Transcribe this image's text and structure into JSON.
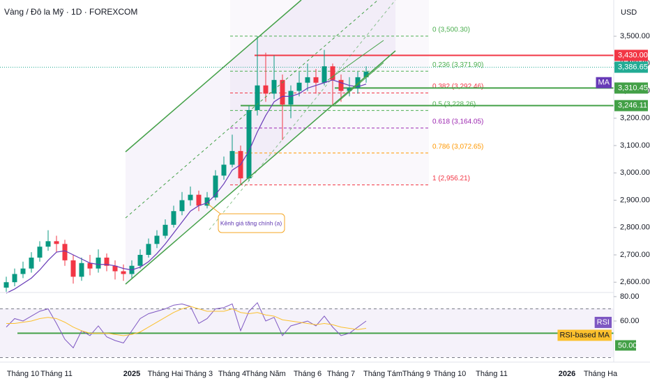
{
  "chart_data": [
    {
      "type": "candlestick",
      "title": "Vàng / Đô la Mỹ · 1D · FOREXCOM",
      "currency": "USD",
      "categories": [
        null,
        null,
        "Tháng 10",
        null,
        null,
        null,
        "Tháng 11",
        null,
        null,
        null,
        null,
        null,
        null,
        null,
        null,
        "2025",
        null,
        null,
        null,
        "Tháng Hai",
        null,
        null,
        null,
        "Tháng 3",
        null,
        null,
        null,
        "Tháng 4",
        null,
        null,
        null,
        "Tháng Năm",
        null,
        null,
        null,
        null,
        "Tháng 6",
        null,
        null,
        null,
        "Tháng 7",
        null,
        null,
        null,
        null,
        "Tháng Tám",
        null,
        null,
        null,
        "Tháng 9",
        null,
        null,
        null,
        "Tháng 10",
        null,
        null,
        null,
        null,
        "Tháng 11",
        null,
        null,
        null,
        null,
        null,
        null,
        null,
        null,
        "2026",
        null,
        null,
        null,
        "Tháng Ha",
        null
      ],
      "open": [
        2580,
        2600,
        2630,
        2650,
        2690,
        2730,
        2750,
        2740,
        2680,
        2620,
        2670,
        2650,
        2690,
        2660,
        2640,
        2630,
        2660,
        2700,
        2740,
        2770,
        2810,
        2860,
        2900,
        2920,
        2880,
        2910,
        2990,
        3030,
        3080,
        2980,
        3230,
        3320,
        3290,
        3340,
        3250,
        3300,
        3330,
        3350,
        3330,
        3390,
        3340,
        3300,
        3310,
        3350,
        null,
        null,
        null,
        null,
        null,
        null,
        null,
        null,
        null,
        null,
        null,
        null,
        null,
        null,
        null,
        null,
        null,
        null,
        null,
        null,
        null,
        null,
        null,
        null,
        null,
        null,
        null,
        null,
        null
      ],
      "high": [
        2620,
        2650,
        2675,
        2710,
        2750,
        2790,
        2770,
        2755,
        2700,
        2690,
        2700,
        2720,
        2705,
        2680,
        2665,
        2680,
        2720,
        2760,
        2790,
        2830,
        2880,
        2930,
        2950,
        2935,
        2930,
        3010,
        3060,
        3140,
        3100,
        3245,
        3500,
        3440,
        3430,
        3360,
        3320,
        3370,
        3400,
        3380,
        3450,
        3400,
        3360,
        3350,
        3370,
        3390,
        null,
        null,
        null,
        null,
        null,
        null,
        null,
        null,
        null,
        null,
        null,
        null,
        null,
        null,
        null,
        null,
        null,
        null,
        null,
        null,
        null,
        null,
        null,
        null,
        null,
        null,
        null,
        null,
        null
      ],
      "low": [
        2565,
        2585,
        2615,
        2635,
        2675,
        2715,
        2710,
        2660,
        2595,
        2605,
        2625,
        2635,
        2640,
        2610,
        2605,
        2615,
        2650,
        2690,
        2725,
        2760,
        2800,
        2845,
        2880,
        2860,
        2870,
        2900,
        2975,
        3020,
        2956,
        2970,
        3210,
        3260,
        3270,
        3120,
        3200,
        3280,
        3300,
        3290,
        3320,
        3250,
        3260,
        3280,
        3290,
        3330,
        null,
        null,
        null,
        null,
        null,
        null,
        null,
        null,
        null,
        null,
        null,
        null,
        null,
        null,
        null,
        null,
        null,
        null,
        null,
        null,
        null,
        null,
        null,
        null,
        null,
        null,
        null,
        null,
        null
      ],
      "close": [
        2600,
        2630,
        2650,
        2690,
        2730,
        2750,
        2740,
        2680,
        2620,
        2670,
        2650,
        2690,
        2660,
        2640,
        2630,
        2660,
        2700,
        2740,
        2770,
        2810,
        2860,
        2900,
        2920,
        2880,
        2910,
        2990,
        3030,
        3080,
        2980,
        3230,
        3320,
        3290,
        3340,
        3250,
        3300,
        3330,
        3350,
        3330,
        3390,
        3340,
        3300,
        3310,
        3350,
        3370,
        null,
        null,
        null,
        null,
        null,
        null,
        null,
        null,
        null,
        null,
        null,
        null,
        null,
        null,
        null,
        null,
        null,
        null,
        null,
        null,
        null,
        null,
        null,
        null,
        null,
        null,
        null,
        null,
        null
      ],
      "up_color": "#089981",
      "down_color": "#f23645",
      "series": [
        {
          "name": "MA",
          "color": "#673ab7",
          "values": [
            2560,
            2575,
            2595,
            2615,
            2645,
            2680,
            2710,
            2715,
            2700,
            2685,
            2670,
            2665,
            2665,
            2660,
            2650,
            2645,
            2655,
            2675,
            2705,
            2740,
            2780,
            2820,
            2860,
            2880,
            2890,
            2920,
            2960,
            3010,
            3030,
            3080,
            3150,
            3210,
            3260,
            3280,
            3280,
            3290,
            3310,
            3320,
            3330,
            3340,
            3330,
            3320,
            3315,
            3325,
            null,
            null,
            null,
            null,
            null,
            null,
            null,
            null,
            null,
            null,
            null,
            null,
            null,
            null,
            null,
            null,
            null,
            null,
            null,
            null,
            null,
            null,
            null,
            null,
            null,
            null,
            null,
            null,
            null
          ]
        }
      ],
      "ylim": [
        2562.4,
        3632.6
      ],
      "yticks": [
        {
          "value": 2600,
          "label": "2,600.00"
        },
        {
          "value": 2700,
          "label": "2,700.00"
        },
        {
          "value": 2800,
          "label": "2,800.00"
        },
        {
          "value": 2900,
          "label": "2,900.00"
        },
        {
          "value": 3000,
          "label": "3,000.00"
        },
        {
          "value": 3100,
          "label": "3,100.00"
        },
        {
          "value": 3200,
          "label": "3,200.00"
        },
        {
          "value": 3300,
          "label": "3,300.00"
        },
        {
          "value": 3400,
          "label": "3,400.00"
        },
        {
          "value": 3500,
          "label": "3,500.00"
        }
      ],
      "fib_levels": [
        {
          "value": 3500.3,
          "label": "0 (3,500.30)",
          "color": "#4caf50"
        },
        {
          "value": 3371.9,
          "label": "0.236 (3,371.90)",
          "color": "#4caf50"
        },
        {
          "value": 3292.46,
          "label": "0.382 (3,292.46)",
          "color": "#f23645"
        },
        {
          "value": 3228.26,
          "label": "0.5 (3,228.26)",
          "color": "#4caf50"
        },
        {
          "value": 3164.05,
          "label": "0.618 (3,164.05)",
          "color": "#9c27b0"
        },
        {
          "value": 3072.65,
          "label": "0.786 (3,072.65)",
          "color": "#ff9800"
        },
        {
          "value": 2956.21,
          "label": "1 (2,956.21)",
          "color": "#f23645"
        }
      ],
      "price_tags": [
        {
          "value": 3430,
          "label": "3,430.00",
          "color": "#f23645",
          "line": "solid"
        },
        {
          "value": 3386.65,
          "label": "3,386.65",
          "color": "#22ab94",
          "line": "dotted"
        },
        {
          "value": 3310.45,
          "label": "3,310.45",
          "color": "#43a047",
          "line": "solid"
        },
        {
          "value": 3246.11,
          "label": "3,246.11",
          "color": "#43a047",
          "line": "solid"
        }
      ],
      "annotation": "Kênh giá tăng chính (a)"
    },
    {
      "type": "line",
      "series": [
        {
          "name": "RSI",
          "color": "#7e57c2",
          "values": [
            55,
            62,
            60,
            64,
            68,
            70,
            58,
            45,
            38,
            52,
            48,
            56,
            47,
            44,
            42,
            52,
            62,
            66,
            68,
            70,
            73,
            74,
            72,
            58,
            62,
            70,
            71,
            74,
            52,
            68,
            75,
            60,
            63,
            48,
            56,
            58,
            60,
            56,
            64,
            55,
            48,
            50,
            55,
            60,
            null,
            null,
            null,
            null,
            null,
            null,
            null,
            null,
            null,
            null,
            null,
            null,
            null,
            null,
            null,
            null,
            null,
            null,
            null,
            null,
            null,
            null,
            null,
            null,
            null,
            null,
            null,
            null,
            null
          ]
        },
        {
          "name": "RSI-based MA",
          "color": "#fbc02d",
          "values": [
            58,
            58,
            59,
            60,
            62,
            63,
            62,
            59,
            55,
            52,
            50,
            50,
            50,
            49,
            48,
            49,
            51,
            55,
            59,
            63,
            67,
            70,
            72,
            70,
            68,
            68,
            68,
            70,
            67,
            66,
            67,
            65,
            64,
            61,
            60,
            59,
            58,
            57,
            58,
            57,
            55,
            54,
            53,
            54,
            null,
            null,
            null,
            null,
            null,
            null,
            null,
            null,
            null,
            null,
            null,
            null,
            null,
            null,
            null,
            null,
            null,
            null,
            null,
            null,
            null,
            null,
            null,
            null,
            null,
            null,
            null,
            null,
            null
          ]
        }
      ],
      "ylim": [
        26.3,
        83.4
      ],
      "yticks": [
        {
          "value": 80,
          "label": "80.00"
        },
        {
          "value": 60,
          "label": "60.00"
        }
      ],
      "bands": [
        70,
        30
      ],
      "level": {
        "value": 50,
        "label": "50.00",
        "color": "#43a047"
      }
    }
  ]
}
